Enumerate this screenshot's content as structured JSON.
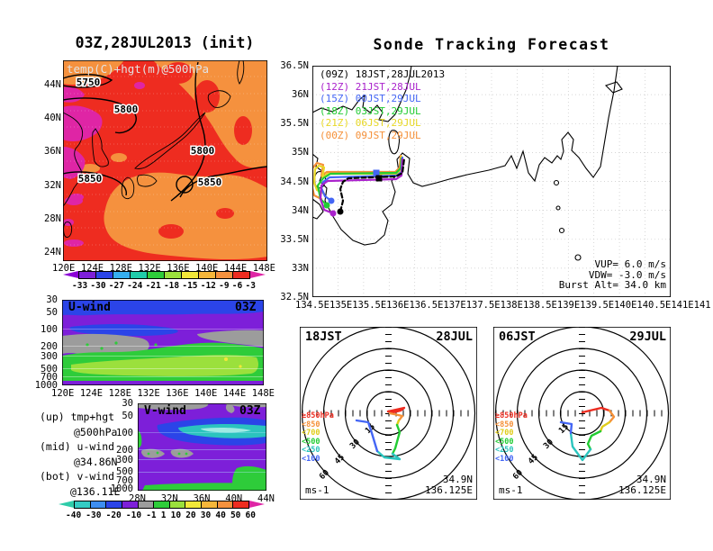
{
  "panel_500hpa": {
    "title": "03Z,28JUL2013 (init)",
    "field_label": "temp(C)+hgt(m)@500hPa",
    "contour_labels": [
      "5750",
      "5800",
      "5850",
      "5800",
      "5850"
    ],
    "lat_ticks": [
      "44N",
      "40N",
      "36N",
      "32N",
      "28N",
      "24N"
    ],
    "lon_ticks": [
      "120E",
      "124E",
      "128E",
      "132E",
      "136E",
      "140E",
      "144E",
      "148E"
    ],
    "colorbar": {
      "ticks": [
        "-33",
        "-30",
        "-27",
        "-24",
        "-21",
        "-18",
        "-15",
        "-12",
        "-9",
        "-6",
        "-3"
      ],
      "arrow_left": "#8B00D6",
      "cells": [
        "#7D1FD9",
        "#2B44E8",
        "#35AEF0",
        "#1FCCAA",
        "#2ECC3A",
        "#9BE03C",
        "#F2E839",
        "#F5B63A",
        "#F5913E",
        "#EE2C20"
      ],
      "arrow_right": "#DF25A5"
    }
  },
  "uwind": {
    "label": "U-wind",
    "time": "03Z",
    "pressure_ticks": [
      "30",
      "50",
      "100",
      "200",
      "300",
      "500",
      "700",
      "1000"
    ],
    "lon_ticks": [
      "120E",
      "124E",
      "128E",
      "132E",
      "136E",
      "140E",
      "144E",
      "148E"
    ]
  },
  "vwind": {
    "label": "V-wind",
    "time": "03Z",
    "pressure_ticks": [
      "30",
      "50",
      "100",
      "200",
      "300",
      "500",
      "700",
      "1000"
    ],
    "lat_ticks": [
      "28N",
      "32N",
      "36N",
      "40N",
      "44N"
    ]
  },
  "notes": {
    "up": "(up) tmp+hgt",
    "up2": "@500hPa",
    "mid": "(mid) u-wind",
    "mid2": "@34.86N",
    "bot": "(bot) v-wind",
    "bot2": "@136.11E"
  },
  "wind_colorbar": {
    "ticks": [
      "-40",
      "-30",
      "-20",
      "-10",
      "-1",
      "1",
      "10",
      "20",
      "30",
      "40",
      "50",
      "60"
    ],
    "arrow_left": "#2ECCA9",
    "cells": [
      "#35CCC4",
      "#3E8EF0",
      "#2B44E8",
      "#7D1FD9",
      "#9C9C9C",
      "#2ECC3A",
      "#9BE03C",
      "#F2E839",
      "#F5B63A",
      "#F5913E",
      "#EE2C20"
    ],
    "arrow_right": "#DF25A5"
  },
  "sonde": {
    "title": "Sonde Tracking Forecast",
    "legend": [
      {
        "text": "(09Z) 18JST,28JUL2013",
        "color": "#000000"
      },
      {
        "text": "(12Z) 21JST,28JUL",
        "color": "#AA22CC"
      },
      {
        "text": "(15Z) 00JST,29JUL",
        "color": "#4466F5"
      },
      {
        "text": "(18Z) 03JST,29JUL",
        "color": "#22CC33"
      },
      {
        "text": "(21Z) 06JST,29JUL",
        "color": "#E8D826"
      },
      {
        "text": "(00Z) 09JST,29JUL",
        "color": "#F59038"
      }
    ],
    "info": [
      "VUP=  6.0  m/s",
      "VDW= -3.0  m/s",
      "Burst Alt=  34.0  km"
    ],
    "lat_ticks": [
      "36.5N",
      "36N",
      "35.5N",
      "35N",
      "34.5N",
      "34N",
      "33.5N",
      "33N",
      "32.5N"
    ],
    "lon_ticks": [
      "134.5E",
      "135E",
      "135.5E",
      "136E",
      "136.5E",
      "137E",
      "137.5E",
      "138E",
      "138.5E",
      "139E",
      "139.5E",
      "140E",
      "140.5E",
      "141E",
      "141.5E"
    ]
  },
  "hodographs": [
    {
      "time": "18JST",
      "date": "28JUL",
      "unit": "ms-1",
      "lat": "34.9N",
      "lon": "136.125E",
      "ring_labels": [
        "15",
        "30",
        "45",
        "60"
      ],
      "legend": [
        {
          "text": "≥850hPa",
          "color": "#EE2C20"
        },
        {
          "text": "<850",
          "color": "#F59038"
        },
        {
          "text": "<700",
          "color": "#E0CC1A"
        },
        {
          "text": "<500",
          "color": "#22CC33"
        },
        {
          "text": "<250",
          "color": "#2BC4BE"
        },
        {
          "text": "<100",
          "color": "#4466F5"
        }
      ]
    },
    {
      "time": "06JST",
      "date": "29JUL",
      "unit": "ms-1",
      "lat": "34.9N",
      "lon": "136.125E",
      "ring_labels": [
        "15",
        "30",
        "45",
        "60"
      ],
      "legend": [
        {
          "text": "≥850hPa",
          "color": "#EE2C20"
        },
        {
          "text": "<850",
          "color": "#F59038"
        },
        {
          "text": "<700",
          "color": "#E0CC1A"
        },
        {
          "text": "<500",
          "color": "#22CC33"
        },
        {
          "text": "<250",
          "color": "#2BC4BE"
        },
        {
          "text": "<100",
          "color": "#4466F5"
        }
      ]
    }
  ],
  "chart_data": [
    {
      "type": "heatmap",
      "title": "03Z,28JUL2013 (init)",
      "subtitle": "temp(C)+hgt(m)@500hPa",
      "x_ticks": [
        "120E",
        "124E",
        "128E",
        "132E",
        "136E",
        "140E",
        "144E",
        "148E"
      ],
      "y_ticks": [
        "24N",
        "28N",
        "32N",
        "36N",
        "40N",
        "44N"
      ],
      "colorbar_levels": [
        -33,
        -30,
        -27,
        -24,
        -21,
        -18,
        -15,
        -12,
        -9,
        -6,
        -3
      ],
      "contour_values_m": [
        5750,
        5800,
        5850,
        5800,
        5850
      ],
      "field_note": "temperature shading mostly -6..-3C (red) with -9..-6C (orange) blobs and >-3C (magenta) patches in west"
    },
    {
      "type": "line",
      "title": "Sonde Tracking Forecast",
      "x_range": [
        "134.5E",
        "141.5E"
      ],
      "y_range": [
        "32.5N",
        "36.5N"
      ],
      "series": [
        {
          "name": "(09Z) 18JST,28JUL2013"
        },
        {
          "name": "(12Z) 21JST,28JUL"
        },
        {
          "name": "(15Z) 00JST,29JUL"
        },
        {
          "name": "(18Z) 03JST,29JUL"
        },
        {
          "name": "(21Z) 06JST,29JUL"
        },
        {
          "name": "(00Z) 09JST,29JUL"
        }
      ],
      "annotations": [
        "VUP= 6.0 m/s",
        "VDW= -3.0 m/s",
        "Burst Alt= 34.0 km"
      ],
      "track_note": "tracks launch near 135.1E,34.1N, climb northwest to ~34.6N then drift east to ~136.4E ending with an upward hook"
    },
    {
      "type": "heatmap",
      "title": "U-wind 03Z",
      "x_ticks": [
        "120E",
        "124E",
        "128E",
        "132E",
        "136E",
        "140E",
        "144E",
        "148E"
      ],
      "y_ticks_hPa": [
        30,
        50,
        100,
        200,
        300,
        500,
        700,
        1000
      ],
      "levels_ms": [
        -40,
        -30,
        -20,
        -10,
        -1,
        1,
        10,
        20,
        30,
        40,
        50,
        60
      ]
    },
    {
      "type": "heatmap",
      "title": "V-wind 03Z",
      "x_ticks": [
        "28N",
        "32N",
        "36N",
        "40N",
        "44N"
      ],
      "y_ticks_hPa": [
        30,
        50,
        100,
        200,
        300,
        500,
        700,
        1000
      ],
      "levels_ms": [
        -40,
        -30,
        -20,
        -10,
        -1,
        1,
        10,
        20,
        30,
        40,
        50,
        60
      ]
    },
    {
      "type": "line",
      "title": "Hodograph 18JST 28JUL at 34.9N 136.125E",
      "ring_radii_ms": [
        15,
        30,
        45,
        60
      ],
      "pressure_layers": [
        "≥850hPa",
        "<850",
        "<700",
        "<500",
        "<250",
        "<100"
      ]
    },
    {
      "type": "line",
      "title": "Hodograph 06JST 29JUL at 34.9N 136.125E",
      "ring_radii_ms": [
        15,
        30,
        45,
        60
      ],
      "pressure_layers": [
        "≥850hPa",
        "<850",
        "<700",
        "<500",
        "<250",
        "<100"
      ]
    }
  ]
}
